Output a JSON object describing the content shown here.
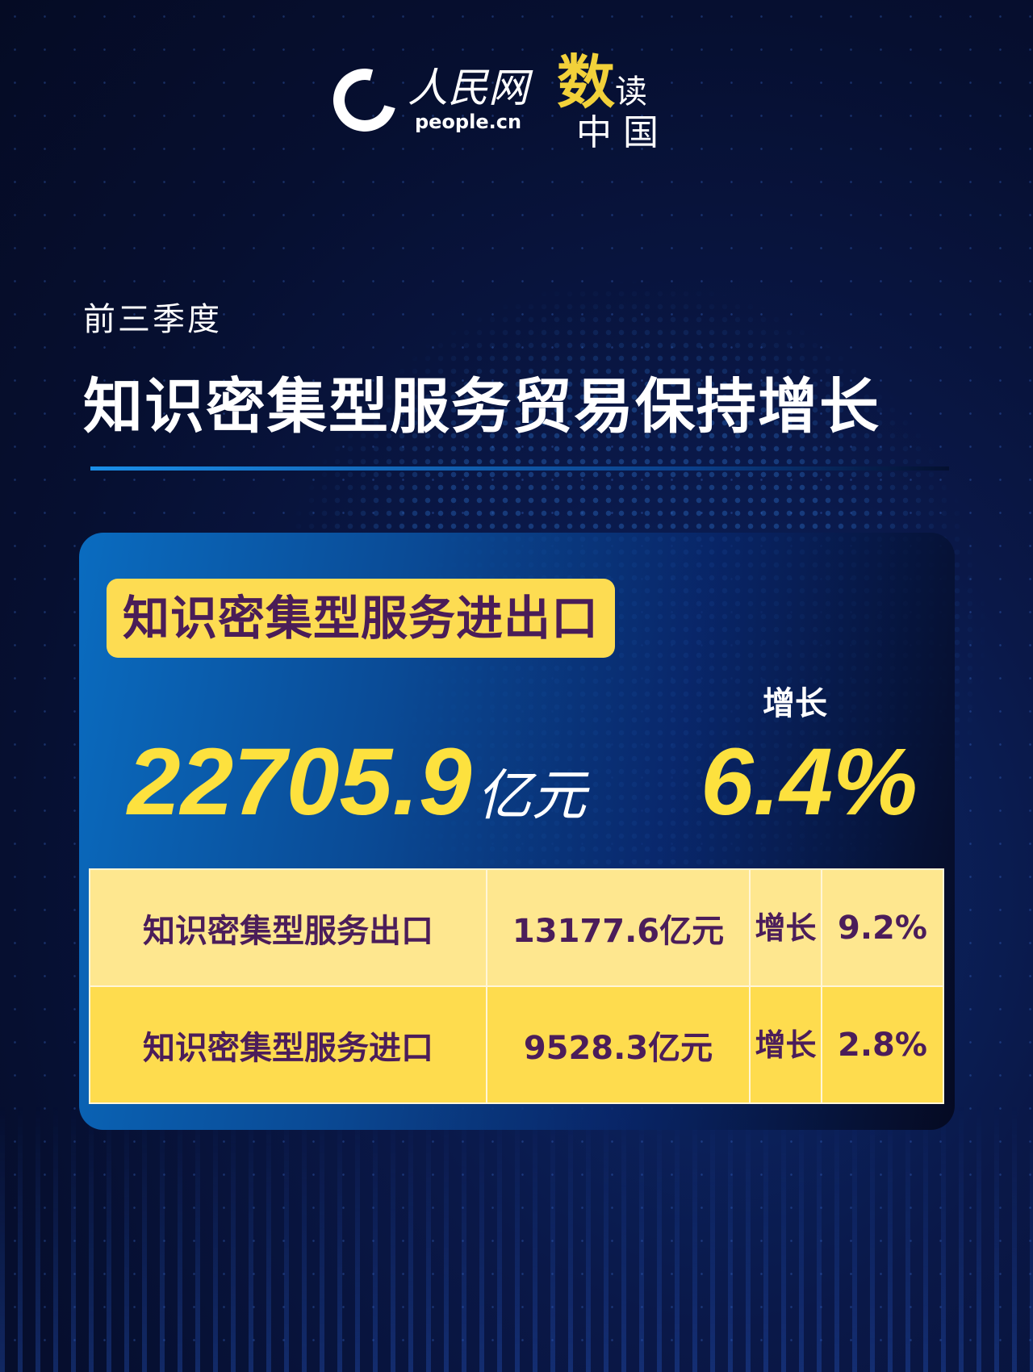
{
  "header": {
    "logo_cn": "人民网",
    "logo_en": "people.cn",
    "brand_highlight": "数",
    "brand_rest": "读",
    "brand_line2": "中国"
  },
  "subtitle": "前三季度",
  "title": "知识密集型服务贸易保持增长",
  "card": {
    "label": "知识密集型服务进出口",
    "total_value": "22705.9",
    "total_unit": "亿元",
    "growth_label": "增长",
    "growth_value": "6.4%"
  },
  "table": {
    "rows": [
      {
        "name": "知识密集型服务出口",
        "value": "13177.6亿元",
        "growth_label": "增长",
        "growth": "9.2%"
      },
      {
        "name": "知识密集型服务进口",
        "value": "9528.3亿元",
        "growth_label": "增长",
        "growth": "2.8%"
      }
    ]
  },
  "colors": {
    "accent_yellow": "#fde13e",
    "label_bg": "#fddc52",
    "text_purple": "#4b1d5a",
    "row1": "#fee78f",
    "row2": "#fedc4e"
  }
}
